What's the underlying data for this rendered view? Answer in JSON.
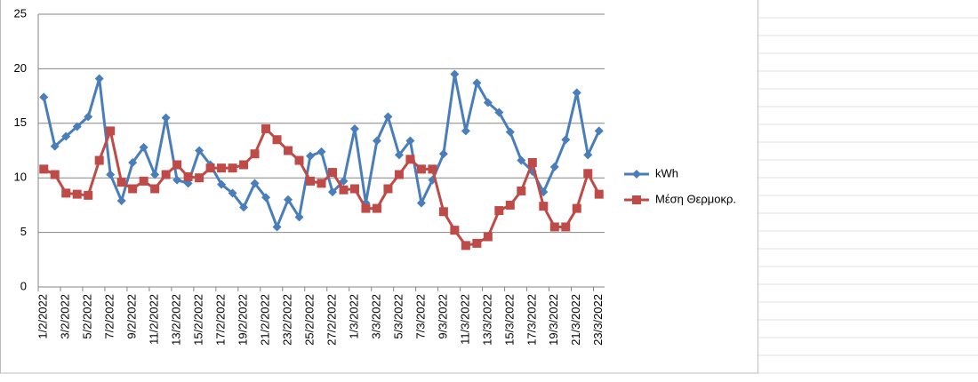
{
  "chart_data": {
    "type": "line",
    "categories": [
      "1/2/2022",
      null,
      "3/2/2022",
      null,
      "5/2/2022",
      null,
      "7/2/2022",
      null,
      "9/2/2022",
      null,
      "11/2/2022",
      null,
      "13/2/2022",
      null,
      "15/2/2022",
      null,
      "17/2/2022",
      null,
      "19/2/2022",
      null,
      "21/2/2022",
      null,
      "23/2/2022",
      null,
      "25/2/2022",
      null,
      "27/2/2022",
      null,
      "1/3/2022",
      null,
      "3/3/2022",
      null,
      "5/3/2022",
      null,
      "7/3/2022",
      null,
      "9/3/2022",
      null,
      "11/3/2022",
      null,
      "13/3/2022",
      null,
      "15/3/2022",
      null,
      "17/3/2022",
      null,
      "19/3/2022",
      null,
      "21/3/2022",
      null,
      "23/3/2022"
    ],
    "series": [
      {
        "name": "kWh",
        "color": "#4a7ebb",
        "marker": "diamond",
        "values": [
          17.4,
          12.9,
          13.8,
          14.7,
          15.6,
          19.1,
          10.3,
          7.9,
          11.4,
          12.8,
          10.3,
          15.5,
          9.8,
          9.5,
          12.5,
          11.2,
          9.4,
          8.6,
          7.3,
          9.5,
          8.2,
          5.5,
          8.0,
          6.4,
          12.0,
          12.4,
          8.7,
          9.7,
          14.5,
          7.7,
          13.4,
          15.6,
          12.1,
          13.4,
          7.7,
          9.8,
          12.2,
          19.5,
          14.3,
          18.7,
          16.9,
          16.0,
          14.2,
          11.6,
          10.6,
          8.7,
          11.0,
          13.5,
          17.8,
          12.1,
          14.3
        ]
      },
      {
        "name": "Μέση Θερμοκρ.",
        "color": "#be4b48",
        "marker": "square",
        "values": [
          10.8,
          10.3,
          8.6,
          8.5,
          8.4,
          11.6,
          14.3,
          9.6,
          9.0,
          9.7,
          9.0,
          10.3,
          11.2,
          10.1,
          10.0,
          10.9,
          10.9,
          10.9,
          11.2,
          12.2,
          14.5,
          13.5,
          12.5,
          11.6,
          9.7,
          9.5,
          10.5,
          8.9,
          9.0,
          7.2,
          7.2,
          9.0,
          10.3,
          11.7,
          10.8,
          10.8,
          6.9,
          5.2,
          3.8,
          4.0,
          4.6,
          7.0,
          7.5,
          8.8,
          11.4,
          7.4,
          5.5,
          5.5,
          7.2,
          10.4,
          8.5
        ]
      }
    ],
    "ylim": [
      0,
      25
    ],
    "yticks": [
      0,
      5,
      10,
      15,
      20,
      25
    ],
    "grid": true,
    "legend": "right"
  }
}
